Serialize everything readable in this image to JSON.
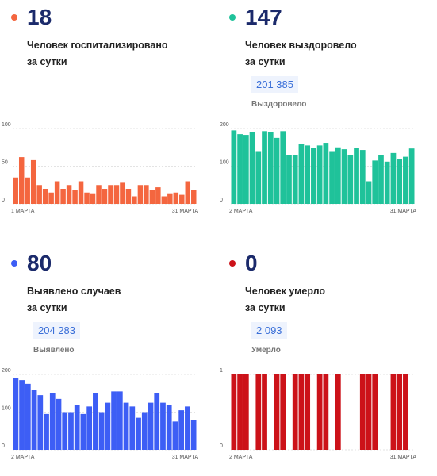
{
  "chart_data": [
    {
      "type": "bar",
      "headline": 18,
      "title_lines": [
        "Человек госпитализировано",
        "за сутки"
      ],
      "color": "#f4663f",
      "categories": [
        "1 МАРТА",
        null,
        null,
        null,
        null,
        null,
        null,
        null,
        null,
        null,
        null,
        null,
        null,
        null,
        null,
        null,
        null,
        null,
        null,
        null,
        null,
        null,
        null,
        null,
        null,
        null,
        null,
        null,
        null,
        null,
        "31 МАРТА"
      ],
      "values": [
        35,
        62,
        35,
        58,
        25,
        20,
        15,
        30,
        20,
        25,
        18,
        30,
        15,
        14,
        25,
        20,
        25,
        25,
        28,
        20,
        10,
        25,
        25,
        18,
        22,
        10,
        14,
        15,
        12,
        30,
        18
      ],
      "ylim": [
        0,
        100
      ],
      "yticks": [
        0,
        50,
        100
      ],
      "grid": true
    },
    {
      "type": "bar",
      "headline": 147,
      "title_lines": [
        "Человек выздоровело",
        "за сутки"
      ],
      "total": "201 385",
      "total_label": "Выздоровело",
      "color": "#1fc29a",
      "categories": [
        "2 МАРТА",
        null,
        null,
        null,
        null,
        null,
        null,
        null,
        null,
        null,
        null,
        null,
        null,
        null,
        null,
        null,
        null,
        null,
        null,
        null,
        null,
        null,
        null,
        null,
        null,
        null,
        null,
        null,
        null,
        "31 МАРТА"
      ],
      "values": [
        195,
        185,
        183,
        190,
        140,
        193,
        190,
        175,
        193,
        130,
        130,
        160,
        155,
        148,
        155,
        162,
        140,
        150,
        145,
        130,
        148,
        143,
        60,
        115,
        130,
        112,
        135,
        120,
        125,
        147
      ],
      "ylim": [
        0,
        200
      ],
      "yticks": [
        0,
        100,
        200
      ],
      "grid": true
    },
    {
      "type": "bar",
      "headline": 80,
      "title_lines": [
        "Выявлено случаев",
        "за сутки"
      ],
      "total": "204 283",
      "total_label": "Выявлено",
      "color": "#3d5ef5",
      "categories": [
        "2 МАРТА",
        null,
        null,
        null,
        null,
        null,
        null,
        null,
        null,
        null,
        null,
        null,
        null,
        null,
        null,
        null,
        null,
        null,
        null,
        null,
        null,
        null,
        null,
        null,
        null,
        null,
        null,
        null,
        null,
        "31 МАРТА"
      ],
      "values": [
        190,
        185,
        175,
        160,
        145,
        95,
        150,
        135,
        100,
        100,
        120,
        95,
        115,
        150,
        100,
        125,
        155,
        155,
        125,
        115,
        85,
        100,
        125,
        150,
        125,
        120,
        75,
        105,
        115,
        80
      ],
      "ylim": [
        0,
        200
      ],
      "yticks": [
        0,
        100,
        200
      ],
      "grid": true
    },
    {
      "type": "bar",
      "headline": 0,
      "title_lines": [
        "Человек умерло",
        "за сутки"
      ],
      "total": "2 093",
      "total_label": "Умерло",
      "color": "#cc1219",
      "categories": [
        "2 МАРТА",
        null,
        null,
        null,
        null,
        null,
        null,
        null,
        null,
        null,
        null,
        null,
        null,
        null,
        null,
        null,
        null,
        null,
        null,
        null,
        null,
        null,
        null,
        null,
        null,
        null,
        null,
        null,
        null,
        "31 МАРТА"
      ],
      "values": [
        1,
        1,
        1,
        0,
        1,
        1,
        0,
        1,
        1,
        0,
        1,
        1,
        1,
        0,
        1,
        1,
        0,
        1,
        0,
        0,
        0,
        1,
        1,
        1,
        0,
        0,
        1,
        1,
        1,
        0
      ],
      "ylim": [
        0,
        1
      ],
      "yticks": [
        0,
        1
      ],
      "grid": true
    }
  ]
}
